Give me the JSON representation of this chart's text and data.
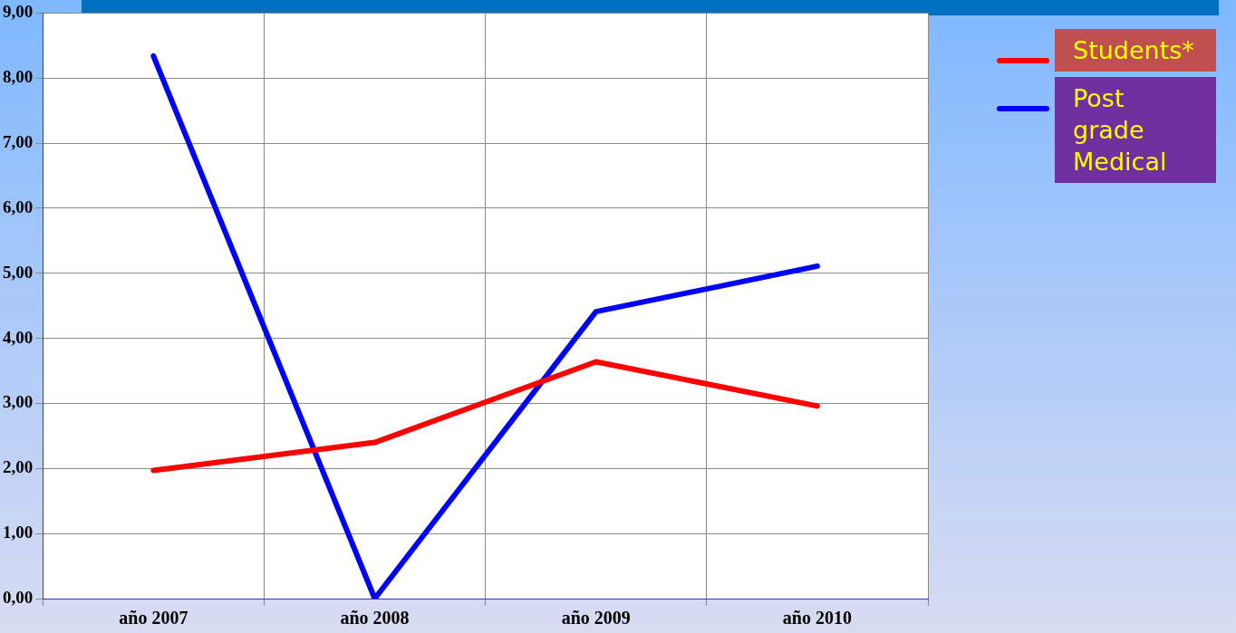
{
  "chart_data": {
    "type": "line",
    "categories": [
      "año 2007",
      "año 2008",
      "año 2009",
      "año 2010"
    ],
    "series": [
      {
        "name": "Students*",
        "color": "#ff0000",
        "values": [
          1.97,
          2.4,
          3.64,
          2.96
        ]
      },
      {
        "name": "Post grade Medical",
        "color": "#0000ff",
        "values": [
          8.34,
          0,
          4.41,
          5.11
        ]
      }
    ],
    "ylim": [
      0,
      9
    ],
    "yticks": [
      {
        "value": 0,
        "label": "0,00"
      },
      {
        "value": 1,
        "label": "1,00"
      },
      {
        "value": 2,
        "label": "2,00"
      },
      {
        "value": 3,
        "label": "3,00"
      },
      {
        "value": 4,
        "label": "4,00"
      },
      {
        "value": 5,
        "label": "5,00"
      },
      {
        "value": 6,
        "label": "6,00"
      },
      {
        "value": 7,
        "label": "7,00"
      },
      {
        "value": 8,
        "label": "8,00"
      },
      {
        "value": 9,
        "label": "9,00"
      }
    ],
    "grid": true,
    "legend": "top right",
    "marker": "none",
    "line_style": "solid"
  }
}
